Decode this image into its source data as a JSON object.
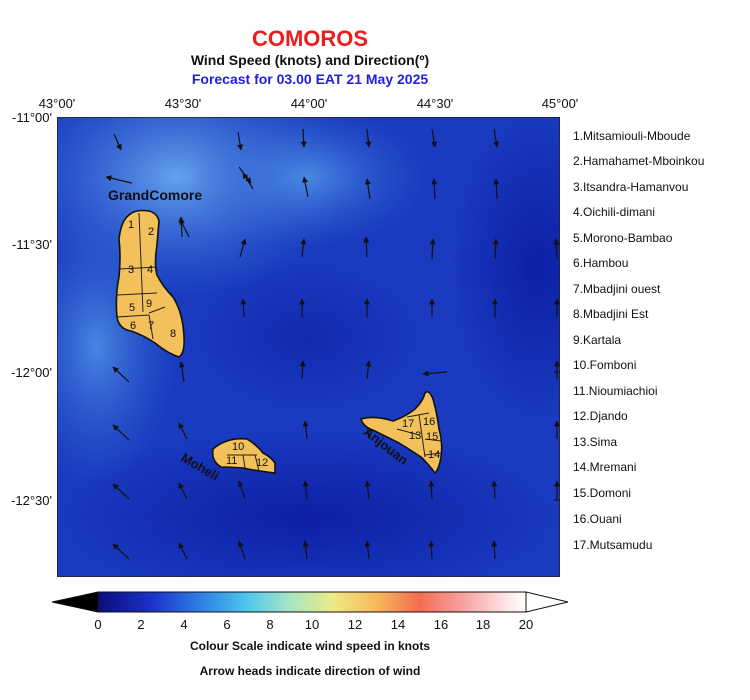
{
  "header": {
    "title": "COMOROS",
    "subtitle": "Wind Speed (knots) and Direction(º)",
    "forecast": "Forecast for  03.00 EAT 21 May 2025"
  },
  "axes": {
    "lon_labels": [
      "43°00'",
      "43°30'",
      "44°00'",
      "44°30'",
      "45°00'"
    ],
    "lat_labels": [
      "-11°00'",
      "-11°30'",
      "-12°00'",
      "-12°30'"
    ]
  },
  "map": {
    "island_labels": {
      "grandcomore": "GrandComore",
      "moheli": "Moheli",
      "anjouan": "Anjouan"
    },
    "region_numbers": [
      "1",
      "2",
      "3",
      "4",
      "5",
      "6",
      "7",
      "8",
      "9",
      "10",
      "11",
      "12",
      "13",
      "14",
      "15",
      "16",
      "17"
    ],
    "colors": {
      "sea_dark": "#0a1fa8",
      "sea_light": "#4c8fe6",
      "land": "#f3c15b",
      "outline": "#111111"
    }
  },
  "legend": {
    "items": [
      "1.Mitsamiouli-Mboude",
      "2.Hamahamet-Mboinkou",
      "3.Itsandra-Hamanvou",
      "4.Oichili-dimani",
      "5.Morono-Bambao",
      "6.Hambou",
      "7.Mbadjini ouest",
      "8.Mbadjini Est",
      "9.Kartala",
      "10.Fomboni",
      "11.Nioumiachioi",
      "12.Djando",
      "13.Sima",
      "14.Mremani",
      "15.Domoni",
      "16.Ouani",
      "17.Mutsamudu"
    ]
  },
  "colorbar": {
    "ticks": [
      "0",
      "2",
      "4",
      "6",
      "8",
      "10",
      "12",
      "14",
      "16",
      "18",
      "20"
    ],
    "caption": "Colour Scale indicate wind speed in knots",
    "arrows_caption": "Arrow heads indicate direction of wind"
  }
}
